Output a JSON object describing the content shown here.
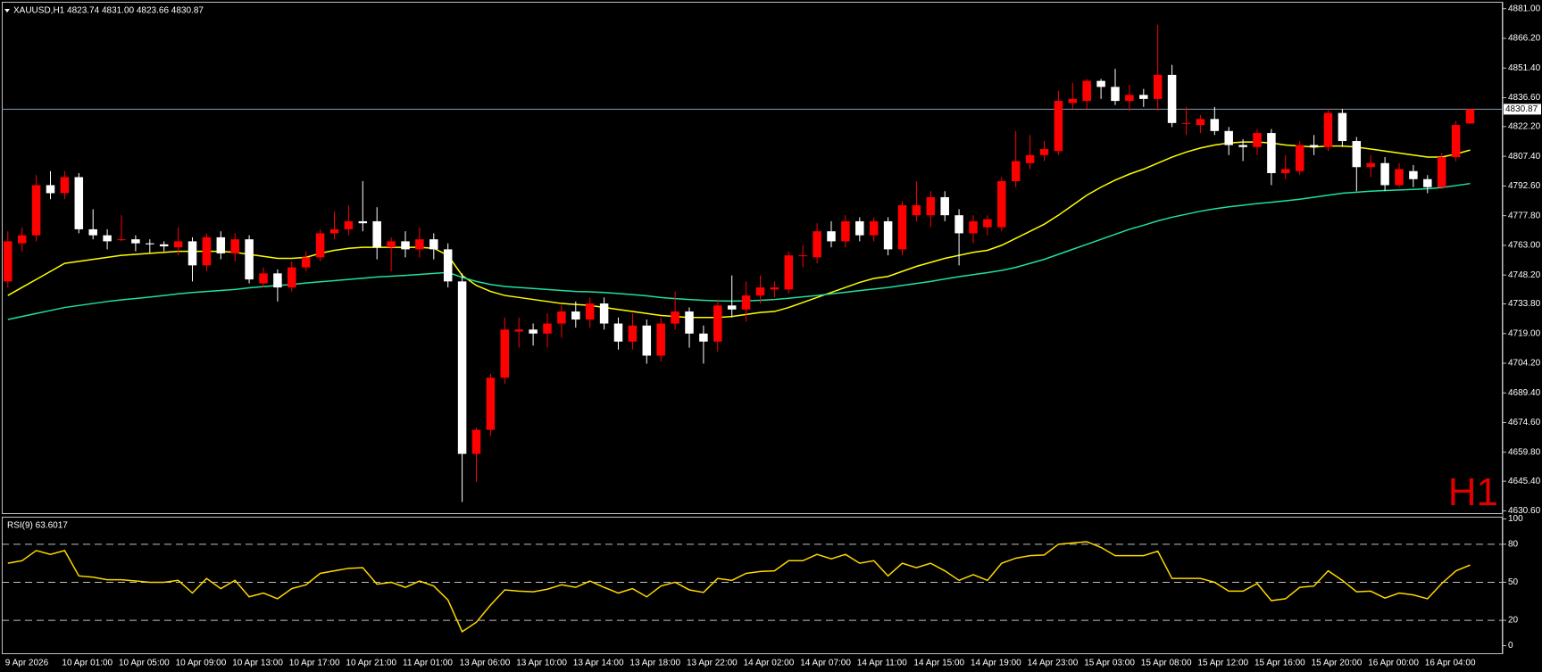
{
  "chart_data": [
    {
      "type": "candlestick",
      "header": "XAUUSD,H1  4823.74 4831.00 4823.66 4830.87",
      "watermark": "H1",
      "categories": [
        "9 Apr 2026",
        null,
        null,
        null,
        "10 Apr 01:00",
        null,
        null,
        null,
        "10 Apr 05:00",
        null,
        null,
        null,
        "10 Apr 09:00",
        null,
        null,
        null,
        "10 Apr 13:00",
        null,
        null,
        null,
        "10 Apr 17:00",
        null,
        null,
        null,
        "10 Apr 21:00",
        null,
        null,
        null,
        "11 Apr 01:00",
        null,
        null,
        null,
        "13 Apr 06:00",
        null,
        null,
        null,
        "13 Apr 10:00",
        null,
        null,
        null,
        "13 Apr 14:00",
        null,
        null,
        null,
        "13 Apr 18:00",
        null,
        null,
        null,
        "13 Apr 22:00",
        null,
        null,
        null,
        "14 Apr 02:00",
        null,
        null,
        null,
        "14 Apr 07:00",
        null,
        null,
        null,
        "14 Apr 11:00",
        null,
        null,
        null,
        "14 Apr 15:00",
        null,
        null,
        null,
        "14 Apr 19:00",
        null,
        null,
        null,
        "14 Apr 23:00",
        null,
        null,
        null,
        "15 Apr 03:00",
        null,
        null,
        null,
        "15 Apr 08:00",
        null,
        null,
        null,
        "15 Apr 12:00",
        null,
        null,
        null,
        "15 Apr 16:00",
        null,
        null,
        null,
        "15 Apr 20:00",
        null,
        null,
        null,
        "16 Apr 00:00",
        null,
        null,
        null,
        "16 Apr 04:00",
        null,
        null,
        null
      ],
      "open": [
        4745,
        4764,
        4768,
        4793,
        4789,
        4797,
        4771,
        4768,
        4766,
        4766,
        4764,
        4763.5,
        4762,
        4765,
        4753,
        4767,
        4759,
        4766,
        4744,
        4749,
        4742,
        4752,
        4757,
        4769,
        4771,
        4775,
        4775,
        4762,
        4765,
        4761,
        4766,
        4761,
        4745,
        4659,
        4671,
        4697,
        4720,
        4721,
        4719,
        4724,
        4730,
        4726,
        4734,
        4724,
        4715,
        4723,
        4708,
        4724,
        4730,
        4719,
        4715,
        4733,
        4731,
        4738,
        4741,
        4741,
        4758,
        4757,
        4770,
        4765,
        4775,
        4768,
        4775,
        4761,
        4778,
        4778,
        4787,
        4778,
        4769,
        4772,
        4772,
        4795,
        4804,
        4808,
        4810,
        4834,
        4835,
        4845,
        4842,
        4835,
        4838,
        4836,
        4848,
        4824,
        4823,
        4826,
        4820,
        4813,
        4812,
        4819,
        4799,
        4800,
        4813,
        4812,
        4829,
        4815,
        4802,
        4804,
        4793,
        4800,
        4796,
        4792,
        4807,
        4823.74
      ],
      "high": [
        4770,
        4772,
        4798,
        4800,
        4800,
        4799,
        4781,
        4771,
        4778,
        4768,
        4766,
        4765,
        4772,
        4767,
        4769,
        4770,
        4769,
        4768,
        4752,
        4751,
        4755,
        4760,
        4771,
        4780,
        4783,
        4795,
        4782,
        4767,
        4770,
        4772,
        4769,
        4764,
        4749,
        4672,
        4699,
        4727,
        4727,
        4724,
        4729,
        4733,
        4735,
        4737,
        4737,
        4727,
        4729,
        4726,
        4727,
        4740,
        4732,
        4723,
        4736,
        4748,
        4745,
        4748,
        4745,
        4760,
        4763,
        4774,
        4775,
        4778,
        4777,
        4777,
        4777,
        4785,
        4795,
        4790,
        4790,
        4781,
        4778,
        4778,
        4797,
        4820,
        4818,
        4815,
        4840,
        4844,
        4846,
        4846,
        4851,
        4843,
        4841,
        4873,
        4853,
        4832,
        4828,
        4832,
        4822,
        4816,
        4821,
        4821,
        4808,
        4815,
        4818,
        4831,
        4831,
        4817,
        4808,
        4807,
        4804,
        4803,
        4798,
        4809,
        4825,
        4831
      ],
      "low": [
        4742,
        4760,
        4765,
        4786,
        4786,
        4769,
        4766,
        4761,
        4765,
        4760,
        4759,
        4760,
        4758,
        4745,
        4750,
        4756,
        4755,
        4744,
        4742,
        4735,
        4740,
        4750,
        4755,
        4766,
        4768,
        4770,
        4756,
        4750,
        4757,
        4757,
        4756,
        4742,
        4635,
        4645,
        4668,
        4694,
        4712,
        4713,
        4712,
        4717,
        4722,
        4722,
        4721,
        4711,
        4711,
        4704,
        4705,
        4721,
        4712,
        4704,
        4710,
        4727,
        4725,
        4734,
        4737,
        4739,
        4752,
        4754,
        4762,
        4762,
        4765,
        4765,
        4758,
        4758,
        4775,
        4772,
        4775,
        4753,
        4764,
        4768,
        4770,
        4792,
        4801,
        4805,
        4808,
        4831,
        4831,
        4836,
        4833,
        4830,
        4832,
        4830,
        4822,
        4818,
        4819,
        4818,
        4808,
        4805,
        4808,
        4793,
        4796,
        4798,
        4808,
        4810,
        4812,
        4790,
        4797,
        4790,
        4792,
        4792,
        4789,
        4791,
        4805,
        4823.66
      ],
      "close": [
        4765,
        4768,
        4793,
        4789,
        4797,
        4771,
        4768,
        4765,
        4766,
        4764,
        4763.5,
        4762.5,
        4765,
        4753,
        4767,
        4759,
        4766,
        4746,
        4749,
        4742,
        4752,
        4757,
        4769,
        4771,
        4775,
        4774,
        4762,
        4765,
        4761,
        4766,
        4761,
        4745,
        4659,
        4671,
        4697,
        4721,
        4721,
        4719,
        4724,
        4730,
        4726,
        4734,
        4724,
        4715,
        4723,
        4708,
        4724,
        4730,
        4719,
        4715,
        4733,
        4731,
        4738,
        4742,
        4742,
        4758,
        4758,
        4770,
        4765,
        4775,
        4768,
        4775,
        4761,
        4783,
        4783,
        4787,
        4778,
        4769,
        4775,
        4776,
        4795,
        4805,
        4808,
        4811,
        4835,
        4836,
        4845,
        4842,
        4835,
        4838,
        4836,
        4848,
        4824,
        4824,
        4826,
        4820,
        4813,
        4812,
        4819,
        4799,
        4801,
        4813,
        4812,
        4829,
        4815,
        4802,
        4804,
        4793,
        4801,
        4796,
        4792,
        4807,
        4823,
        4830.87
      ],
      "up_color": "#ff0000",
      "down_color": "#ffffff",
      "overlays": [
        {
          "color": "#ffff00",
          "values": [
            4738,
            4742,
            4746,
            4750,
            4754,
            4755,
            4756,
            4757,
            4758,
            4758.5,
            4759,
            4759.5,
            4760,
            4760,
            4760,
            4760,
            4759.5,
            4758.5,
            4757.5,
            4756.5,
            4756.5,
            4757,
            4759,
            4760.5,
            4761.5,
            4762,
            4762,
            4762,
            4762,
            4762,
            4761.5,
            4758,
            4748,
            4743,
            4740,
            4738,
            4737,
            4736,
            4735,
            4734,
            4733.5,
            4733,
            4732,
            4731,
            4730,
            4729,
            4728,
            4727.5,
            4727,
            4727,
            4727,
            4727.5,
            4728.5,
            4729.5,
            4730,
            4732,
            4734.5,
            4737,
            4739.5,
            4742,
            4744.5,
            4746.5,
            4747.5,
            4750,
            4752.5,
            4754.5,
            4756.5,
            4758,
            4759.5,
            4760.5,
            4763,
            4766.5,
            4770,
            4773.5,
            4778,
            4783,
            4788,
            4792,
            4795.5,
            4798.5,
            4801,
            4804,
            4807,
            4809.5,
            4811.5,
            4813,
            4814,
            4814.5,
            4814.5,
            4814,
            4813,
            4812.5,
            4812,
            4812.5,
            4812.5,
            4812,
            4811,
            4810,
            4809,
            4808,
            4807,
            4807,
            4808.5,
            4810.5
          ]
        },
        {
          "color": "#20e0a0",
          "values": [
            4726,
            4727.5,
            4729,
            4730.5,
            4732,
            4733,
            4734,
            4735,
            4735.8,
            4736.5,
            4737.2,
            4738,
            4738.8,
            4739.5,
            4740,
            4740.5,
            4741,
            4741.8,
            4742.4,
            4743,
            4743.5,
            4744.2,
            4744.8,
            4745.4,
            4746,
            4746.6,
            4747.2,
            4747.6,
            4748,
            4748.5,
            4749,
            4749.5,
            4747,
            4745,
            4743.5,
            4742.5,
            4742,
            4741.5,
            4741,
            4740.5,
            4740,
            4739.8,
            4739.5,
            4739,
            4738.4,
            4737.8,
            4737,
            4736.4,
            4736,
            4735.6,
            4735.3,
            4735.2,
            4735.3,
            4735.6,
            4736,
            4736.6,
            4737.3,
            4738,
            4738.8,
            4739.6,
            4740.4,
            4741.2,
            4742,
            4743,
            4744,
            4745,
            4746.2,
            4747.4,
            4748.4,
            4749.4,
            4750.5,
            4752,
            4754,
            4756,
            4758.5,
            4761,
            4763.5,
            4766,
            4768.5,
            4771,
            4773,
            4775.2,
            4777,
            4778.5,
            4780,
            4781.2,
            4782.2,
            4783,
            4783.8,
            4784.5,
            4785.2,
            4786,
            4787,
            4788,
            4789,
            4789.5,
            4790,
            4790.3,
            4790.6,
            4790.9,
            4791.2,
            4791.8,
            4792.8,
            4793.8
          ]
        }
      ],
      "last_price": 4830.87,
      "price_line_color": "#8899aa",
      "ylim": [
        4629,
        4884
      ],
      "yticks": [
        {
          "value": 4881,
          "label": "4881.00"
        },
        {
          "value": 4866.2,
          "label": "4866.20"
        },
        {
          "value": 4851.4,
          "label": "4851.40"
        },
        {
          "value": 4836.6,
          "label": "4836.60"
        },
        {
          "value": 4822.2,
          "label": "4822.20"
        },
        {
          "value": 4807.4,
          "label": "4807.40"
        },
        {
          "value": 4792.6,
          "label": "4792.60"
        },
        {
          "value": 4777.8,
          "label": "4777.80"
        },
        {
          "value": 4763,
          "label": "4763.00"
        },
        {
          "value": 4748.2,
          "label": "4748.20"
        },
        {
          "value": 4733.8,
          "label": "4733.80"
        },
        {
          "value": 4719,
          "label": "4719.00"
        },
        {
          "value": 4704.2,
          "label": "4704.20"
        },
        {
          "value": 4689.4,
          "label": "4689.40"
        },
        {
          "value": 4674.6,
          "label": "4674.60"
        },
        {
          "value": 4659.8,
          "label": "4659.80"
        },
        {
          "value": 4645.4,
          "label": "4645.40"
        },
        {
          "value": 4630.6,
          "label": "4630.60"
        }
      ]
    },
    {
      "type": "line",
      "title": "RSI(9) 63.6017",
      "color": "#ffd700",
      "values": [
        65,
        67,
        75,
        72,
        75,
        55,
        54,
        52,
        52,
        51,
        50,
        50,
        51.5,
        41.5,
        53,
        45,
        51.5,
        38.5,
        41.5,
        37,
        45,
        48,
        57,
        59,
        61,
        61.5,
        48.5,
        50,
        46,
        51,
        47,
        36,
        11,
        18.5,
        32,
        44,
        43,
        42.5,
        44.5,
        48,
        46,
        51,
        46,
        41.5,
        45,
        38.5,
        47,
        50,
        44,
        42,
        53,
        51.5,
        57,
        58.5,
        59,
        67,
        67,
        72,
        68.5,
        72,
        65,
        67,
        55,
        65,
        61.5,
        65,
        59,
        51.5,
        56,
        51.5,
        65,
        69,
        71,
        71.5,
        80,
        81,
        82,
        77.5,
        71,
        71,
        71,
        74.5,
        53,
        53,
        53,
        50,
        43,
        43,
        49,
        35.5,
        37,
        46,
        47,
        59,
        51.5,
        42.5,
        43,
        37.5,
        41.5,
        40,
        37,
        49,
        59,
        63.6017
      ],
      "levels": [
        80,
        50,
        20
      ],
      "ylim": [
        -6,
        101
      ],
      "yticks": [
        100,
        80,
        50,
        20,
        0
      ]
    }
  ]
}
